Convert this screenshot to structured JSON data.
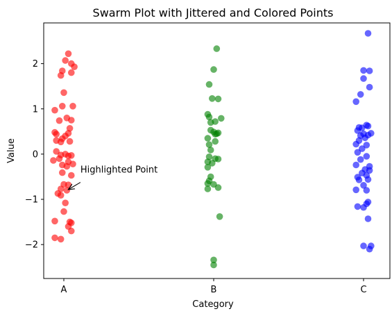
{
  "chart_data": {
    "type": "scatter",
    "title": "Swarm Plot with Jittered and Colored Points",
    "xlabel": "Category",
    "ylabel": "Value",
    "categories": [
      "A",
      "B",
      "C"
    ],
    "ylim": [
      -2.75,
      2.9
    ],
    "yticks": [
      -2,
      -1,
      0,
      1,
      2
    ],
    "grid": false,
    "point_alpha": 0.6,
    "series": [
      {
        "category": "A",
        "color": "#ff0000",
        "points": [
          {
            "x": 0.03,
            "y": 2.22
          },
          {
            "x": 0.01,
            "y": 2.07
          },
          {
            "x": 0.05,
            "y": 2.0
          },
          {
            "x": 0.07,
            "y": 1.93
          },
          {
            "x": -0.01,
            "y": 1.84
          },
          {
            "x": 0.05,
            "y": 1.8
          },
          {
            "x": -0.02,
            "y": 1.74
          },
          {
            "x": 0.0,
            "y": 1.36
          },
          {
            "x": -0.01,
            "y": 1.06
          },
          {
            "x": 0.06,
            "y": 1.06
          },
          {
            "x": -0.06,
            "y": 0.97
          },
          {
            "x": 0.02,
            "y": 0.8
          },
          {
            "x": -0.03,
            "y": 0.74
          },
          {
            "x": 0.05,
            "y": 0.75
          },
          {
            "x": 0.04,
            "y": 0.57
          },
          {
            "x": -0.06,
            "y": 0.48
          },
          {
            "x": -0.05,
            "y": 0.44
          },
          {
            "x": 0.03,
            "y": 0.46
          },
          {
            "x": 0.01,
            "y": 0.4
          },
          {
            "x": -0.05,
            "y": 0.3
          },
          {
            "x": -0.02,
            "y": 0.27
          },
          {
            "x": 0.04,
            "y": 0.28
          },
          {
            "x": -0.01,
            "y": 0.34
          },
          {
            "x": -0.05,
            "y": 0.06
          },
          {
            "x": -0.02,
            "y": -0.02
          },
          {
            "x": 0.01,
            "y": 0.0
          },
          {
            "x": 0.03,
            "y": -0.04
          },
          {
            "x": 0.05,
            "y": -0.03
          },
          {
            "x": -0.07,
            "y": -0.14
          },
          {
            "x": -0.03,
            "y": -0.1
          },
          {
            "x": 0.03,
            "y": -0.17
          },
          {
            "x": -0.01,
            "y": -0.24
          },
          {
            "x": 0.02,
            "y": -0.27
          },
          {
            "x": 0.06,
            "y": -0.22
          },
          {
            "x": -0.01,
            "y": -0.41
          },
          {
            "x": 0.05,
            "y": -0.47
          },
          {
            "x": 0.0,
            "y": -0.67
          },
          {
            "x": 0.03,
            "y": -0.68
          },
          {
            "x": -0.02,
            "y": -0.77
          },
          {
            "x": 0.02,
            "y": -0.8
          },
          {
            "x": -0.04,
            "y": -0.87
          },
          {
            "x": -0.02,
            "y": -0.91
          },
          {
            "x": 0.01,
            "y": -1.08
          },
          {
            "x": 0.0,
            "y": -1.27
          },
          {
            "x": -0.06,
            "y": -1.48
          },
          {
            "x": 0.04,
            "y": -1.5
          },
          {
            "x": 0.05,
            "y": -1.52
          },
          {
            "x": 0.03,
            "y": -1.6
          },
          {
            "x": 0.05,
            "y": -1.7
          },
          {
            "x": -0.06,
            "y": -1.85
          },
          {
            "x": -0.02,
            "y": -1.88
          }
        ]
      },
      {
        "category": "B",
        "color": "#008000",
        "points": [
          {
            "x": 0.02,
            "y": 2.33
          },
          {
            "x": 0.0,
            "y": 1.87
          },
          {
            "x": -0.03,
            "y": 1.54
          },
          {
            "x": -0.01,
            "y": 1.23
          },
          {
            "x": 0.03,
            "y": 1.22
          },
          {
            "x": -0.04,
            "y": 0.88
          },
          {
            "x": -0.03,
            "y": 0.82
          },
          {
            "x": 0.05,
            "y": 0.79
          },
          {
            "x": 0.01,
            "y": 0.72
          },
          {
            "x": -0.02,
            "y": 0.7
          },
          {
            "x": -0.02,
            "y": 0.53
          },
          {
            "x": 0.0,
            "y": 0.49
          },
          {
            "x": 0.03,
            "y": 0.47
          },
          {
            "x": 0.01,
            "y": 0.44
          },
          {
            "x": 0.02,
            "y": 0.45
          },
          {
            "x": -0.04,
            "y": 0.35
          },
          {
            "x": 0.01,
            "y": 0.28
          },
          {
            "x": -0.03,
            "y": 0.21
          },
          {
            "x": -0.02,
            "y": 0.09
          },
          {
            "x": -0.03,
            "y": -0.06
          },
          {
            "x": 0.01,
            "y": -0.1
          },
          {
            "x": 0.03,
            "y": -0.11
          },
          {
            "x": -0.04,
            "y": -0.17
          },
          {
            "x": -0.01,
            "y": -0.2
          },
          {
            "x": -0.04,
            "y": -0.29
          },
          {
            "x": -0.02,
            "y": -0.5
          },
          {
            "x": -0.03,
            "y": -0.59
          },
          {
            "x": -0.04,
            "y": -0.65
          },
          {
            "x": 0.0,
            "y": -0.67
          },
          {
            "x": 0.03,
            "y": -0.74
          },
          {
            "x": -0.04,
            "y": -0.77
          },
          {
            "x": 0.04,
            "y": -1.38
          },
          {
            "x": 0.0,
            "y": -2.34
          },
          {
            "x": 0.0,
            "y": -2.45
          }
        ]
      },
      {
        "category": "C",
        "color": "#0000ff",
        "points": [
          {
            "x": 0.03,
            "y": 2.67
          },
          {
            "x": 0.0,
            "y": 1.85
          },
          {
            "x": 0.04,
            "y": 1.84
          },
          {
            "x": 0.0,
            "y": 1.67
          },
          {
            "x": 0.04,
            "y": 1.48
          },
          {
            "x": -0.02,
            "y": 1.32
          },
          {
            "x": -0.05,
            "y": 1.16
          },
          {
            "x": 0.02,
            "y": 0.64
          },
          {
            "x": 0.03,
            "y": 0.62
          },
          {
            "x": -0.03,
            "y": 0.59
          },
          {
            "x": -0.01,
            "y": 0.58
          },
          {
            "x": -0.04,
            "y": 0.52
          },
          {
            "x": 0.05,
            "y": 0.46
          },
          {
            "x": 0.0,
            "y": 0.45
          },
          {
            "x": 0.03,
            "y": 0.42
          },
          {
            "x": -0.02,
            "y": 0.41
          },
          {
            "x": 0.01,
            "y": 0.36
          },
          {
            "x": -0.03,
            "y": 0.3
          },
          {
            "x": -0.05,
            "y": 0.22
          },
          {
            "x": 0.02,
            "y": 0.2
          },
          {
            "x": -0.01,
            "y": 0.12
          },
          {
            "x": -0.04,
            "y": 0.04
          },
          {
            "x": 0.02,
            "y": -0.05
          },
          {
            "x": -0.02,
            "y": -0.12
          },
          {
            "x": -0.05,
            "y": -0.24
          },
          {
            "x": 0.04,
            "y": -0.27
          },
          {
            "x": 0.01,
            "y": -0.34
          },
          {
            "x": 0.04,
            "y": -0.36
          },
          {
            "x": -0.01,
            "y": -0.42
          },
          {
            "x": 0.02,
            "y": -0.47
          },
          {
            "x": -0.04,
            "y": -0.51
          },
          {
            "x": -0.03,
            "y": -0.57
          },
          {
            "x": 0.03,
            "y": -0.56
          },
          {
            "x": 0.0,
            "y": -0.69
          },
          {
            "x": -0.05,
            "y": -0.79
          },
          {
            "x": 0.02,
            "y": -0.8
          },
          {
            "x": 0.03,
            "y": -1.06
          },
          {
            "x": 0.02,
            "y": -1.1
          },
          {
            "x": -0.04,
            "y": -1.16
          },
          {
            "x": 0.0,
            "y": -1.18
          },
          {
            "x": 0.03,
            "y": -1.43
          },
          {
            "x": 0.0,
            "y": -2.03
          },
          {
            "x": 0.05,
            "y": -2.03
          },
          {
            "x": 0.04,
            "y": -2.1
          }
        ]
      }
    ],
    "annotations": [
      {
        "text": "Highlighted Point",
        "point": {
          "category": "A",
          "x": 0.02,
          "y": -0.8
        },
        "text_offset": {
          "dx": 0.1,
          "dy": 0.36
        }
      }
    ]
  }
}
